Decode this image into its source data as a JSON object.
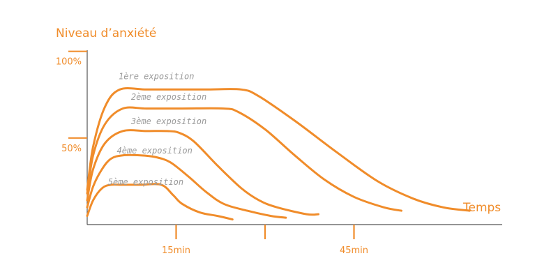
{
  "colors": {
    "accent": "#f08c2a",
    "label_gray": "#9a9a9a",
    "background": "#ffffff"
  },
  "chart_data": {
    "type": "line",
    "ylabel": "Niveau d’anxiété",
    "xlabel": "Temps",
    "y_ticks": [
      {
        "value": 100,
        "label": "100%"
      },
      {
        "value": 50,
        "label": "50%"
      }
    ],
    "x_ticks": [
      {
        "value": 15,
        "label": "15min"
      },
      {
        "value": 30,
        "label": ""
      },
      {
        "value": 45,
        "label": "45min"
      }
    ],
    "x_range": [
      0,
      70
    ],
    "y_range": [
      0,
      120
    ],
    "series": [
      {
        "name": "1ère exposition",
        "label_at": [
          5.3,
          84
        ],
        "points": [
          [
            0,
            20
          ],
          [
            1,
            45
          ],
          [
            3,
            68
          ],
          [
            5.5,
            78
          ],
          [
            10,
            78
          ],
          [
            15,
            78
          ],
          [
            20,
            78
          ],
          [
            26,
            78
          ],
          [
            29,
            74
          ],
          [
            35,
            60
          ],
          [
            42,
            42
          ],
          [
            49,
            25
          ],
          [
            55,
            15
          ],
          [
            60,
            10
          ],
          [
            64.5,
            8
          ]
        ]
      },
      {
        "name": "2ème exposition",
        "label_at": [
          7.4,
          72
        ],
        "points": [
          [
            0,
            18
          ],
          [
            1,
            40
          ],
          [
            3,
            58
          ],
          [
            6,
            67
          ],
          [
            10,
            67
          ],
          [
            16,
            67
          ],
          [
            23,
            67
          ],
          [
            25.5,
            65
          ],
          [
            30,
            55
          ],
          [
            35,
            40
          ],
          [
            40,
            26
          ],
          [
            45,
            16
          ],
          [
            50,
            10
          ],
          [
            53,
            8
          ]
        ]
      },
      {
        "name": "3ème exposition",
        "label_at": [
          7.4,
          58
        ],
        "points": [
          [
            0,
            14
          ],
          [
            1,
            32
          ],
          [
            3,
            47
          ],
          [
            6,
            54
          ],
          [
            10,
            54
          ],
          [
            13.5,
            54
          ],
          [
            15.5,
            53
          ],
          [
            18,
            48
          ],
          [
            22,
            34
          ],
          [
            26,
            21
          ],
          [
            29,
            14
          ],
          [
            32,
            10
          ],
          [
            37,
            6
          ],
          [
            39,
            6
          ]
        ]
      },
      {
        "name": "4ème exposition",
        "label_at": [
          5,
          41
        ],
        "points": [
          [
            0,
            10
          ],
          [
            1,
            22
          ],
          [
            2.5,
            32
          ],
          [
            4,
            38
          ],
          [
            6,
            40
          ],
          [
            9,
            40
          ],
          [
            11.5,
            39
          ],
          [
            14,
            36
          ],
          [
            17,
            28
          ],
          [
            20,
            19
          ],
          [
            23,
            12
          ],
          [
            27,
            8
          ],
          [
            31,
            5
          ],
          [
            33.5,
            4
          ]
        ]
      },
      {
        "name": "5ème exposition",
        "label_at": [
          3.5,
          23
        ],
        "points": [
          [
            0,
            5
          ],
          [
            1,
            14
          ],
          [
            2.5,
            21
          ],
          [
            4,
            23
          ],
          [
            6,
            23
          ],
          [
            9,
            23
          ],
          [
            12.5,
            23
          ],
          [
            14.5,
            17
          ],
          [
            16,
            12
          ],
          [
            19,
            7
          ],
          [
            22,
            5
          ],
          [
            24.5,
            3
          ]
        ]
      }
    ]
  }
}
